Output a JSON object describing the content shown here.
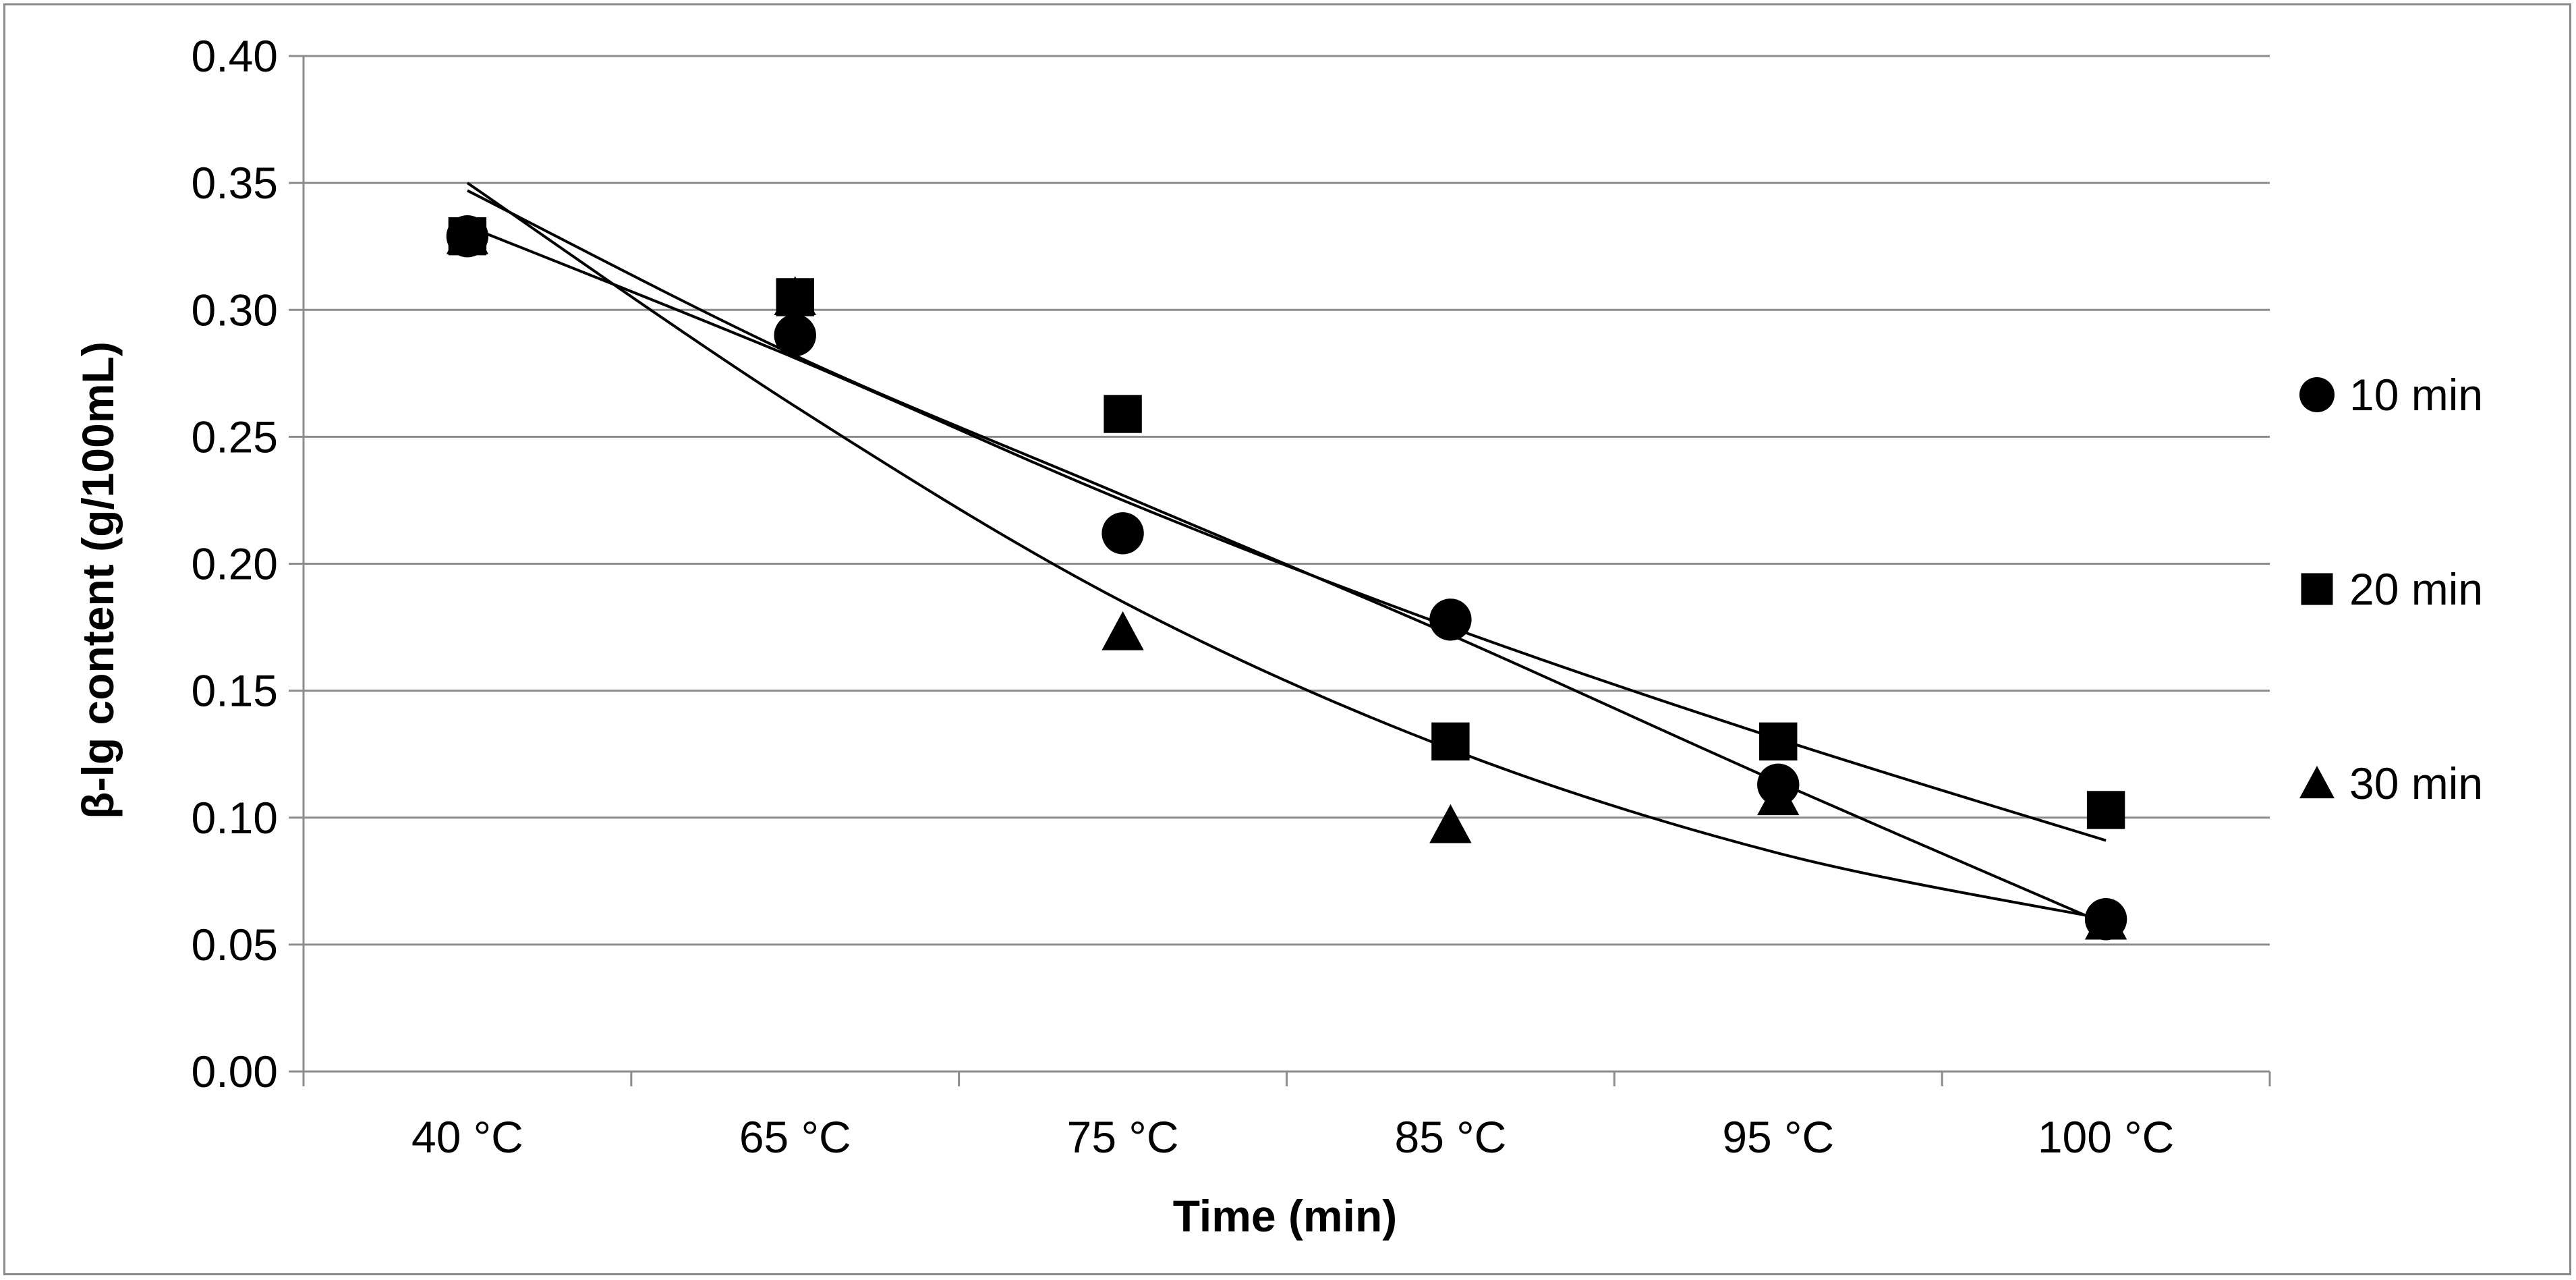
{
  "chart_data": {
    "type": "scatter",
    "title": "",
    "xlabel": "Time (min)",
    "ylabel": "β-lg content (g/100mL)",
    "categories": [
      "40 °C",
      "65 °C",
      "75 °C",
      "85 °C",
      "95 °C",
      "100 °C"
    ],
    "ylim": [
      0,
      0.4
    ],
    "yticks": [
      "0.00",
      "0.05",
      "0.10",
      "0.15",
      "0.20",
      "0.25",
      "0.30",
      "0.35",
      "0.40"
    ],
    "grid": true,
    "legend_position": "right",
    "series": [
      {
        "name": "10 min",
        "marker": "circle",
        "values": [
          0.329,
          0.29,
          0.212,
          0.178,
          0.113,
          0.06
        ],
        "trendline": [
          0.347,
          0.282,
          0.227,
          0.172,
          0.114,
          0.058
        ]
      },
      {
        "name": "20 min",
        "marker": "square",
        "values": [
          0.329,
          0.305,
          0.259,
          0.13,
          0.13,
          0.103
        ],
        "trendline": [
          0.333,
          0.281,
          0.225,
          0.175,
          0.131,
          0.091
        ]
      },
      {
        "name": "30 min",
        "marker": "triangle",
        "values": [
          0.329,
          0.305,
          0.173,
          0.097,
          0.108,
          0.059
        ],
        "trendline": [
          0.35,
          0.262,
          0.185,
          0.127,
          0.086,
          0.06
        ]
      }
    ]
  }
}
